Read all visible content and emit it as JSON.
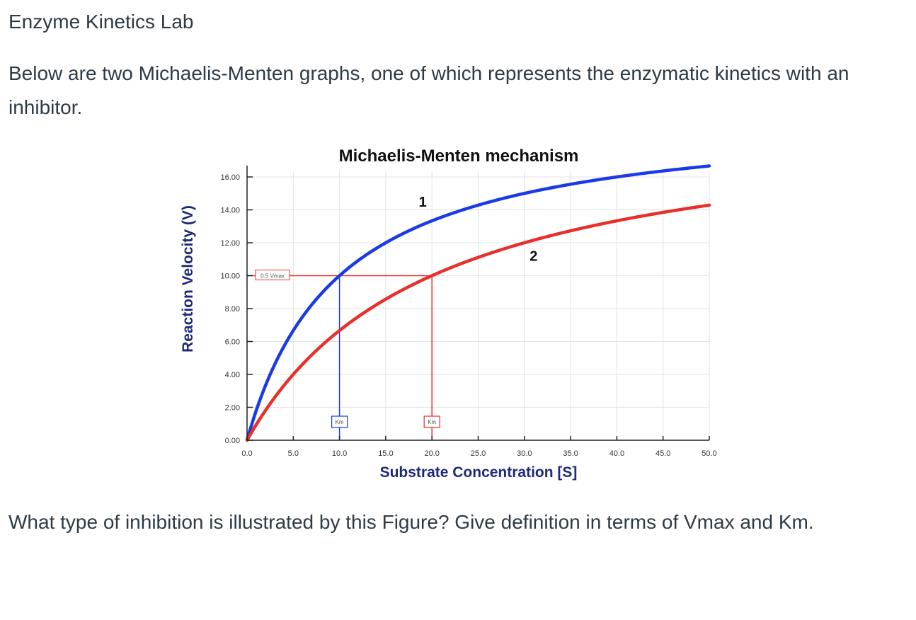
{
  "page": {
    "title": "Enzyme Kinetics Lab",
    "intro": "Below are two Michaelis-Menten graphs, one of which represents the enzymatic kinetics with an inhibitor.",
    "question": "What type of inhibition is illustrated by this Figure? Give definition in terms of Vmax and Km."
  },
  "chart_data": {
    "type": "line",
    "title": "Michaelis-Menten mechanism",
    "xlabel": "Substrate Concentration [S]",
    "ylabel": "Reaction Velocity (V)",
    "xlim": [
      0,
      50
    ],
    "ylim": [
      0,
      16
    ],
    "x_ticks": [
      "0.0",
      "5.0",
      "10.0",
      "15.0",
      "20.0",
      "25.0",
      "30.0",
      "35.0",
      "40.0",
      "45.0",
      "50.0"
    ],
    "y_ticks": [
      "0.00",
      "2.00",
      "4.00",
      "6.00",
      "8.00",
      "10.00",
      "12.00",
      "14.00",
      "16.00"
    ],
    "grid": true,
    "series": [
      {
        "name": "1",
        "vmax": 20,
        "km": 10,
        "color": "#1a3ae8",
        "x": [
          0,
          5,
          10,
          15,
          20,
          25,
          30,
          35,
          40,
          45,
          50
        ],
        "values": [
          0,
          6.67,
          10,
          12,
          13.33,
          14.29,
          15,
          15.56,
          16,
          16.36,
          16.67
        ]
      },
      {
        "name": "2",
        "vmax": 20,
        "km": 20,
        "color": "#e8302a",
        "x": [
          0,
          5,
          10,
          15,
          20,
          25,
          30,
          35,
          40,
          45,
          50
        ],
        "values": [
          0,
          4,
          6.67,
          8.57,
          10,
          11.11,
          12,
          12.73,
          13.33,
          13.85,
          14.29
        ]
      }
    ],
    "annotations": {
      "half_vmax_label": "0.5 Vmax",
      "half_vmax_value": 10,
      "km_label": "Km",
      "km_values": [
        10,
        20
      ],
      "curve_labels": [
        {
          "text": "1",
          "x": 19,
          "y": 14.2
        },
        {
          "text": "2",
          "x": 31,
          "y": 10.9
        }
      ]
    }
  }
}
